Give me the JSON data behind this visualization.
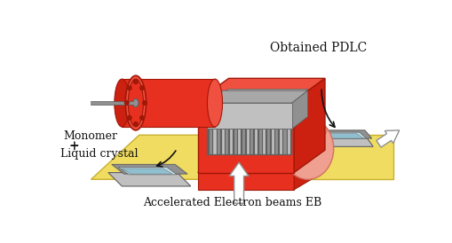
{
  "background_color": "#ffffff",
  "labels": {
    "obtained_pdlc": "Obtained PDLC",
    "monomer": "Monomer",
    "plus": "+",
    "liquid_crystal": "Liquid crystal",
    "accelerated": "Accelerated Electron beams EB"
  },
  "colors": {
    "red_bright": "#E83020",
    "red_mid": "#CC2010",
    "red_top": "#F05040",
    "red_dark": "#A01808",
    "salmon_light": "#F0A090",
    "salmon_dark": "#D07060",
    "yellow": "#F0DC60",
    "yellow_dark": "#C8B030",
    "gray_light": "#C0C0C0",
    "gray_mid": "#909090",
    "gray_dark": "#606060",
    "gray_silver": "#A8A8A8",
    "white": "#FFFFFF",
    "black": "#111111",
    "blue_light": "#C0DDE8",
    "blue_mid": "#90C0D0",
    "near_black": "#222222"
  },
  "figsize": [
    5.1,
    2.74
  ],
  "dpi": 100
}
